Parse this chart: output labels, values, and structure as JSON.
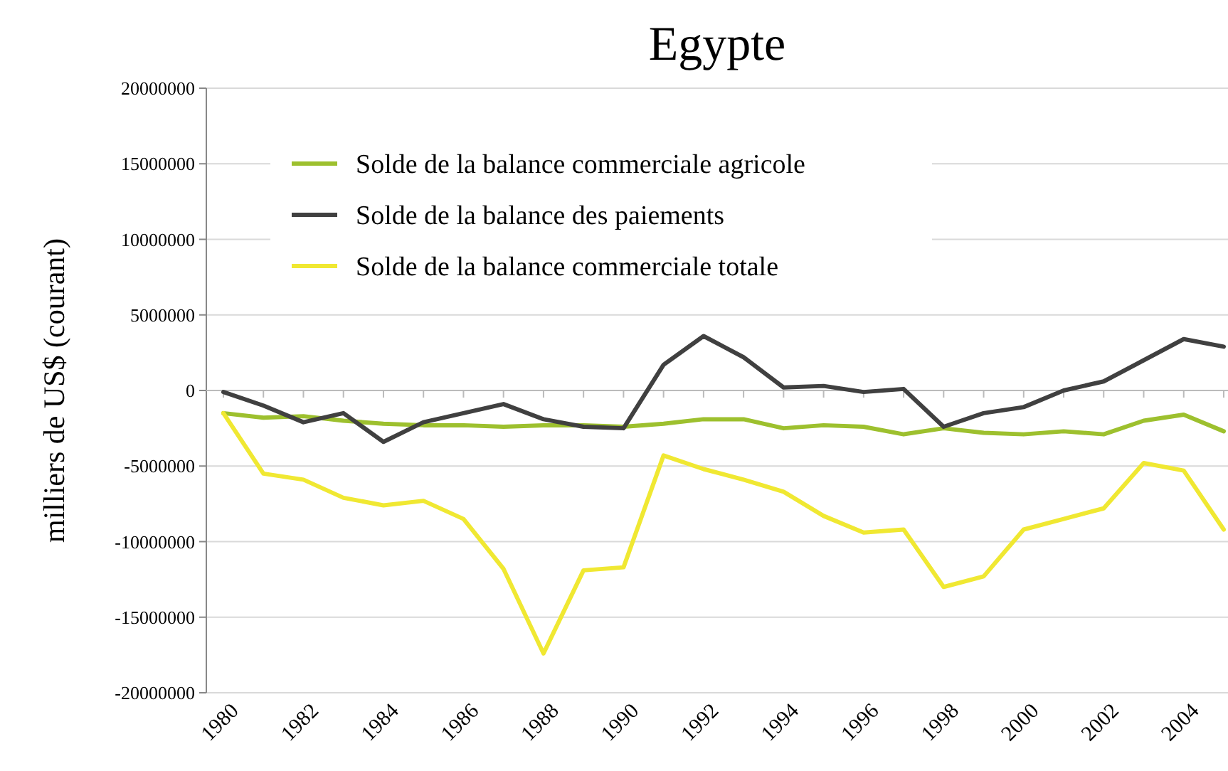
{
  "chart_data": {
    "type": "line",
    "title": "Egypte",
    "ylabel": "milliers de US$ (courant)",
    "categories": [
      "1980",
      null,
      "1982",
      null,
      "1984",
      null,
      "1986",
      null,
      "1988",
      null,
      "1990",
      null,
      "1992",
      null,
      "1994",
      null,
      "1996",
      null,
      "1998",
      null,
      "2000",
      null,
      "2002",
      null,
      "2004",
      null
    ],
    "series": [
      {
        "name": "Solde de la balance commerciale agricole",
        "color": "#9dc02e",
        "values": [
          -1500000,
          -1800000,
          -1700000,
          -2000000,
          -2200000,
          -2300000,
          -2300000,
          -2400000,
          -2300000,
          -2300000,
          -2400000,
          -2200000,
          -1900000,
          -1900000,
          -2500000,
          -2300000,
          -2400000,
          -2900000,
          -2500000,
          -2800000,
          -2900000,
          -2700000,
          -2900000,
          -2000000,
          -1600000,
          -2700000
        ]
      },
      {
        "name": "Solde de la balance des paiements",
        "color": "#404040",
        "values": [
          -100000,
          -1000000,
          -2100000,
          -1500000,
          -3400000,
          -2100000,
          -1500000,
          -900000,
          -1900000,
          -2400000,
          -2500000,
          1700000,
          3600000,
          2200000,
          200000,
          300000,
          -100000,
          100000,
          -2400000,
          -1500000,
          -1100000,
          0,
          600000,
          2000000,
          3400000,
          2900000
        ]
      },
      {
        "name": "Solde de la balance commerciale totale",
        "color": "#f0e832",
        "values": [
          -1500000,
          -5500000,
          -5900000,
          -7100000,
          -7600000,
          -7300000,
          -8500000,
          -11800000,
          -17400000,
          -11900000,
          -11700000,
          -4300000,
          -5200000,
          -5900000,
          -6700000,
          -8300000,
          -9400000,
          -9200000,
          -13000000,
          -12300000,
          -9200000,
          -8500000,
          -7800000,
          -4800000,
          -5300000,
          -9200000
        ]
      }
    ],
    "ylim": [
      -20000000,
      20000000
    ],
    "yticks": [
      -20000000,
      -15000000,
      -10000000,
      -5000000,
      0,
      5000000,
      10000000,
      15000000,
      20000000
    ],
    "grid": "y",
    "legend": "top left",
    "marker": "none",
    "line_style": "solid"
  }
}
